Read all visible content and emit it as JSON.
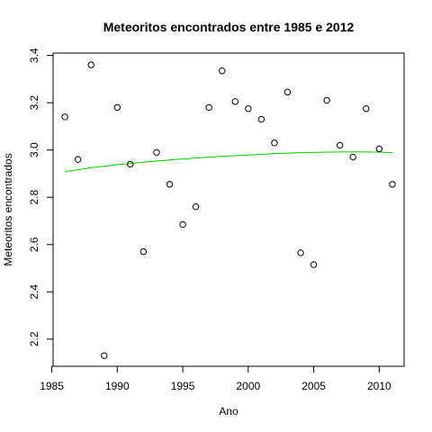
{
  "chart_data": {
    "type": "scatter",
    "title": "Meteoritos encontrados entre 1985 e 2012",
    "xlabel": "Ano",
    "ylabel": "Meteoritos encontrados",
    "xlim": [
      1985.1,
      2011.9
    ],
    "ylim": [
      2.085,
      3.41
    ],
    "xticks": [
      1985,
      1990,
      1995,
      2000,
      2005,
      2010
    ],
    "yticks": [
      2.2,
      2.4,
      2.6,
      2.8,
      3.0,
      3.2,
      3.4
    ],
    "ytick_labels": [
      "2.2",
      "2.4",
      "2.6",
      "2.8",
      "3.0",
      "3.2",
      "3.4"
    ],
    "x": [
      1986,
      1987,
      1988,
      1989,
      1990,
      1991,
      1992,
      1993,
      1994,
      1995,
      1996,
      1997,
      1998,
      1999,
      2000,
      2001,
      2002,
      2003,
      2004,
      2005,
      2006,
      2007,
      2008,
      2009,
      2010,
      2011
    ],
    "y": [
      3.14,
      2.96,
      3.36,
      2.13,
      3.18,
      2.94,
      2.57,
      2.99,
      2.855,
      2.685,
      2.76,
      3.18,
      3.335,
      3.205,
      3.175,
      3.13,
      3.03,
      3.245,
      2.565,
      2.515,
      3.21,
      3.02,
      2.97,
      3.175,
      3.005,
      2.855
    ],
    "trend": {
      "color": "#00cc00",
      "x": [
        1986,
        1988,
        1990,
        1992,
        1994,
        1996,
        1998,
        2000,
        2002,
        2004,
        2006,
        2008,
        2010,
        2011
      ],
      "y": [
        2.908,
        2.925,
        2.938,
        2.949,
        2.958,
        2.966,
        2.973,
        2.979,
        2.985,
        2.989,
        2.991,
        2.992,
        2.991,
        2.989
      ]
    },
    "grid": false,
    "legend": "none"
  }
}
